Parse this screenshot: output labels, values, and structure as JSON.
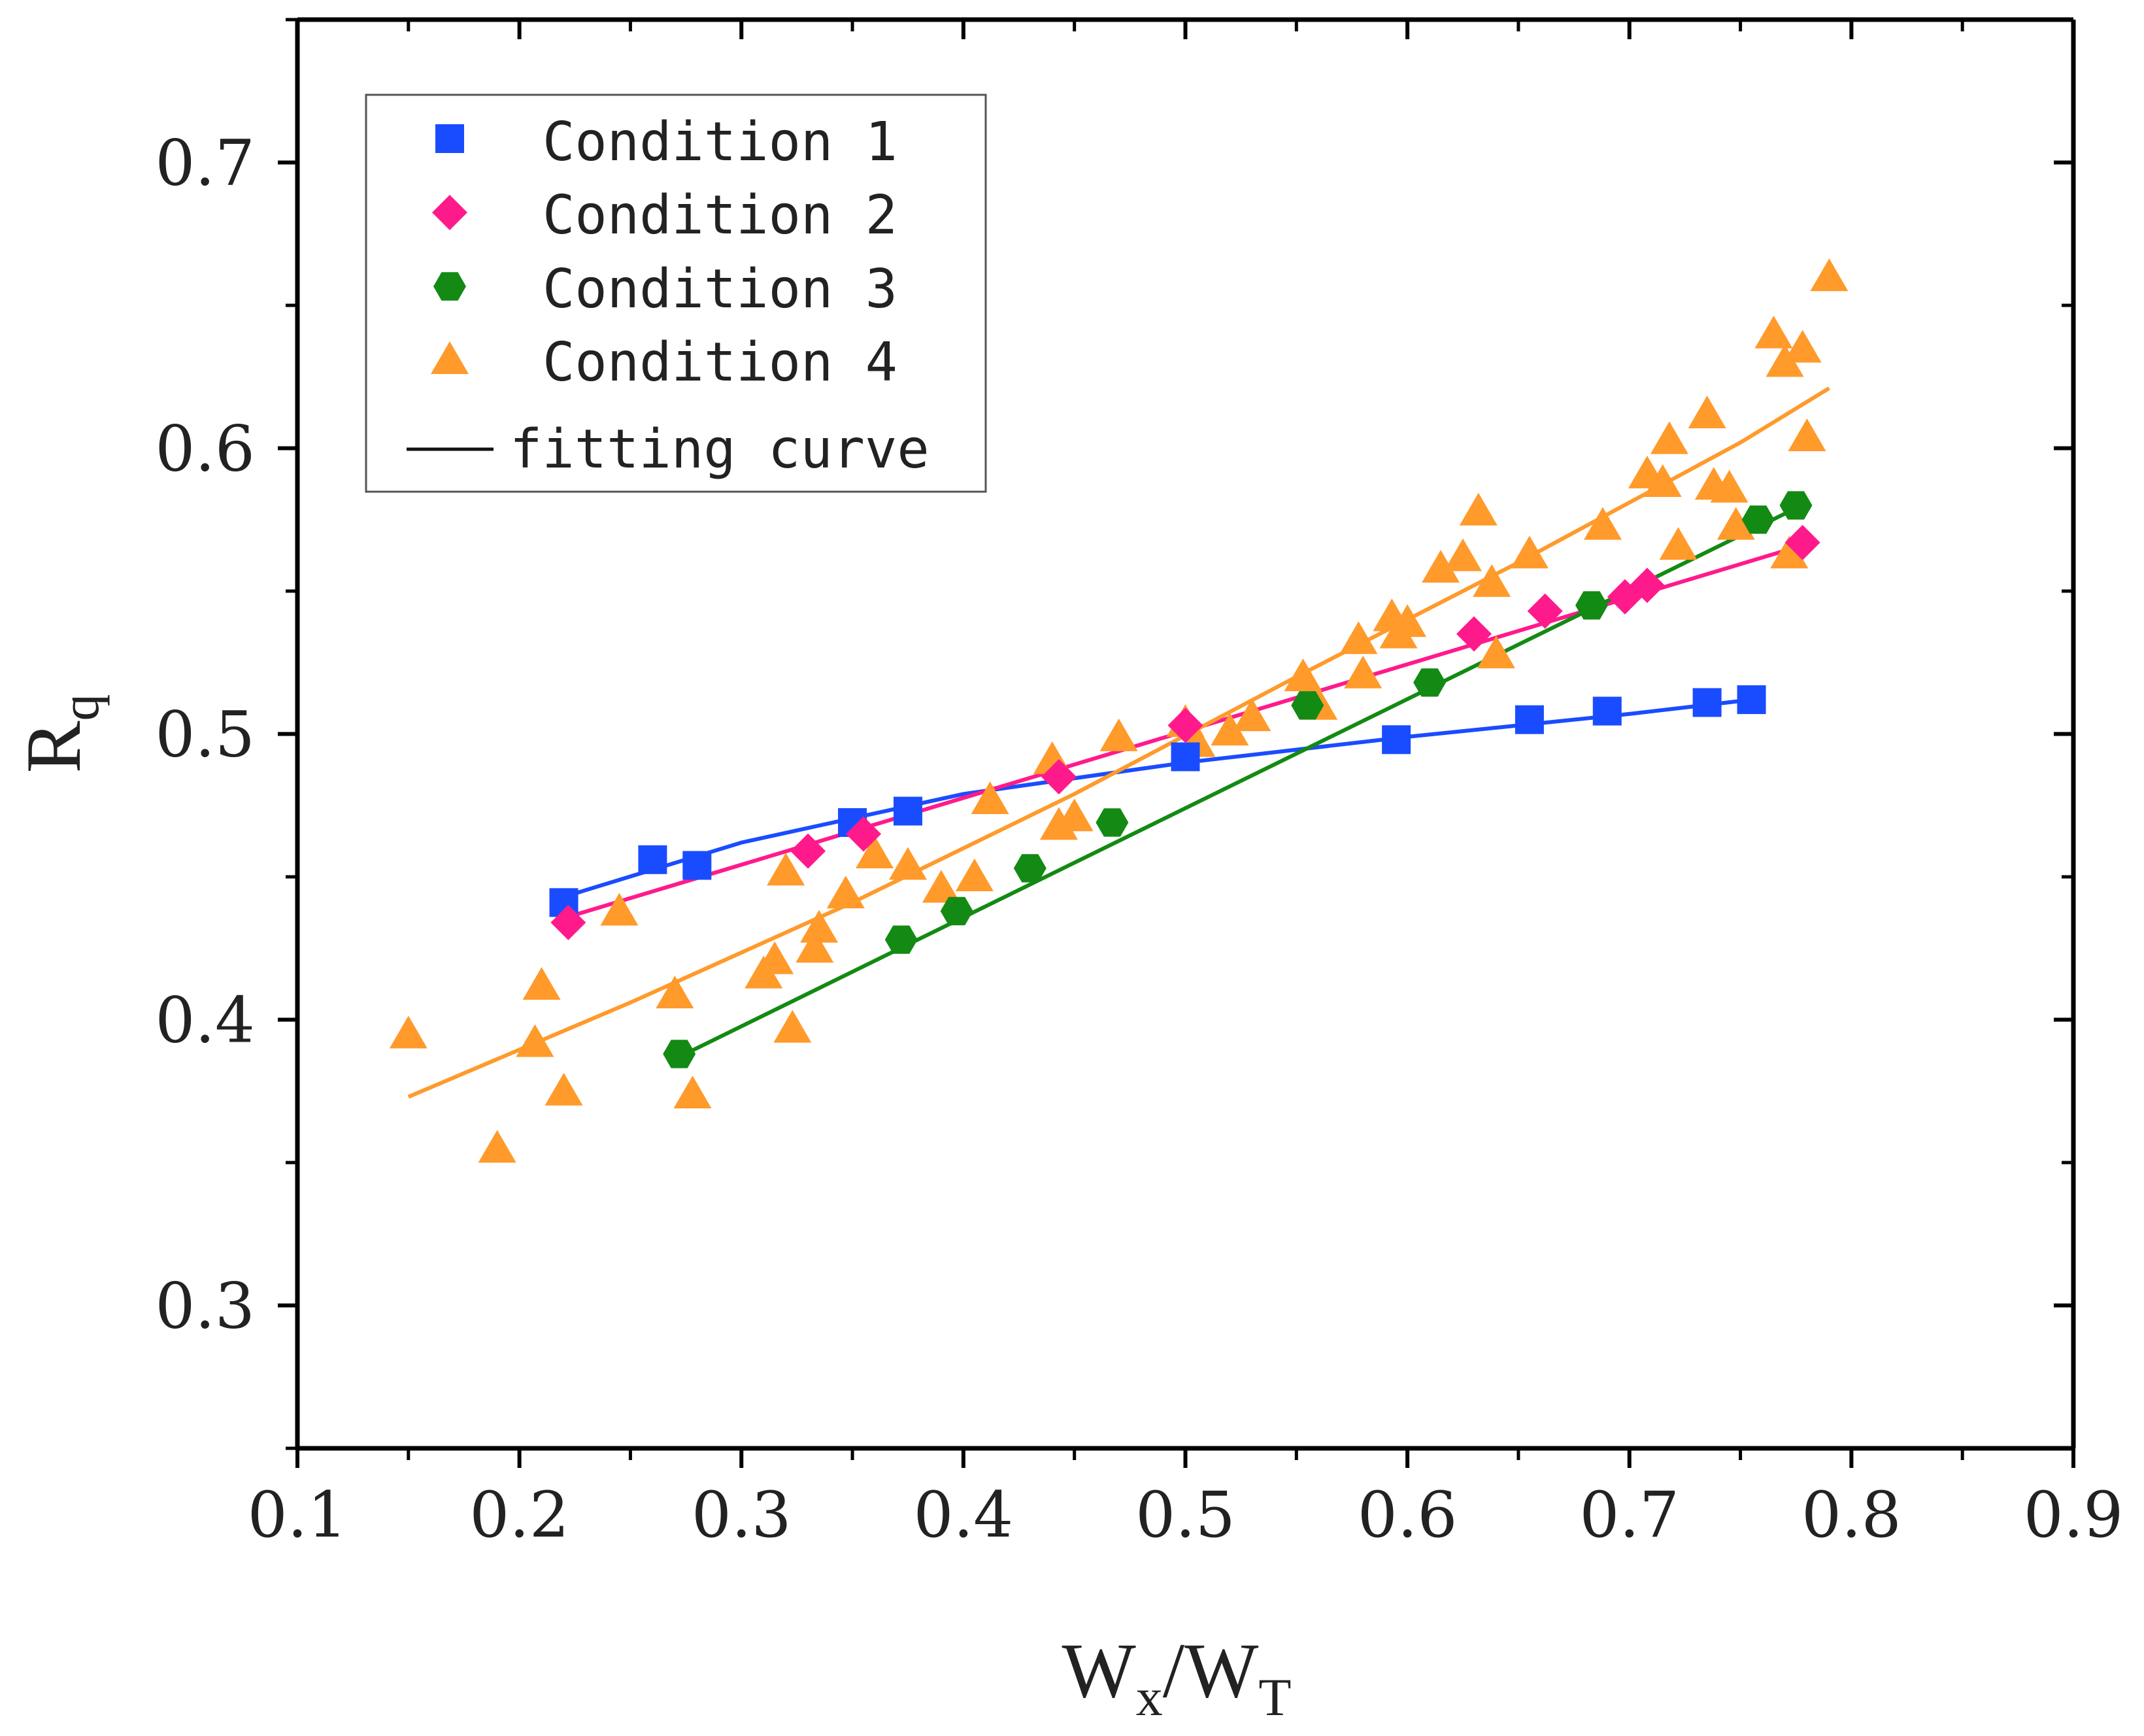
{
  "chart_data": {
    "type": "scatter",
    "title": "",
    "xlabel": {
      "main": "W",
      "sub1": "x",
      "slash": "/W",
      "sub2": "T"
    },
    "ylabel": {
      "main": "R",
      "sub": "q"
    },
    "xlim": [
      0.1,
      0.9
    ],
    "ylim": [
      0.25,
      0.75
    ],
    "xticks": [
      0.1,
      0.2,
      0.3,
      0.4,
      0.5,
      0.6,
      0.7,
      0.8,
      0.9
    ],
    "xtick_labels": [
      "0.1",
      "0.2",
      "0.3",
      "0.4",
      "0.5",
      "0.6",
      "0.7",
      "0.8",
      "0.9"
    ],
    "yticks": [
      0.3,
      0.4,
      0.5,
      0.6,
      0.7
    ],
    "ytick_labels": [
      "0.3",
      "0.4",
      "0.5",
      "0.6",
      "0.7"
    ],
    "grid": false,
    "legend_position": "top-left",
    "fit_label": "fitting curve",
    "series": [
      {
        "name": "Condition 1",
        "marker": "square",
        "color": "#1a4cff",
        "x": [
          0.22,
          0.26,
          0.28,
          0.35,
          0.375,
          0.5,
          0.595,
          0.655,
          0.69,
          0.735,
          0.755
        ],
        "y": [
          0.441,
          0.456,
          0.454,
          0.469,
          0.473,
          0.492,
          0.498,
          0.505,
          0.508,
          0.511,
          0.512
        ],
        "fit": {
          "x": [
            0.22,
            0.3,
            0.4,
            0.5,
            0.6,
            0.7,
            0.755
          ],
          "y": [
            0.443,
            0.462,
            0.479,
            0.49,
            0.499,
            0.507,
            0.512
          ]
        }
      },
      {
        "name": "Condition 2",
        "marker": "diamond",
        "color": "#ff1a8c",
        "x": [
          0.222,
          0.33,
          0.355,
          0.443,
          0.5,
          0.63,
          0.662,
          0.698,
          0.708,
          0.778
        ],
        "y": [
          0.434,
          0.459,
          0.465,
          0.485,
          0.503,
          0.535,
          0.543,
          0.548,
          0.552,
          0.567
        ],
        "fit": {
          "x": [
            0.222,
            0.778
          ],
          "y": [
            0.436,
            0.566
          ]
        }
      },
      {
        "name": "Condition 3",
        "marker": "hexagon",
        "color": "#138a13",
        "x": [
          0.272,
          0.372,
          0.397,
          0.43,
          0.467,
          0.555,
          0.61,
          0.683,
          0.758,
          0.775
        ],
        "y": [
          0.388,
          0.428,
          0.438,
          0.453,
          0.469,
          0.51,
          0.518,
          0.545,
          0.575,
          0.58
        ],
        "fit": {
          "x": [
            0.272,
            0.775
          ],
          "y": [
            0.387,
            0.579
          ]
        }
      },
      {
        "name": "Condition 4",
        "marker": "triangle",
        "color": "#ff9a2b",
        "x": [
          0.15,
          0.19,
          0.207,
          0.21,
          0.22,
          0.245,
          0.27,
          0.278,
          0.31,
          0.315,
          0.32,
          0.323,
          0.333,
          0.335,
          0.347,
          0.36,
          0.375,
          0.39,
          0.405,
          0.412,
          0.44,
          0.443,
          0.45,
          0.47,
          0.5,
          0.505,
          0.52,
          0.53,
          0.553,
          0.56,
          0.578,
          0.58,
          0.593,
          0.596,
          0.6,
          0.615,
          0.625,
          0.632,
          0.638,
          0.64,
          0.655,
          0.688,
          0.708,
          0.715,
          0.718,
          0.722,
          0.735,
          0.738,
          0.745,
          0.748,
          0.765,
          0.77,
          0.772,
          0.778,
          0.78,
          0.79
        ],
        "y": [
          0.395,
          0.355,
          0.392,
          0.412,
          0.375,
          0.438,
          0.409,
          0.374,
          0.416,
          0.421,
          0.452,
          0.397,
          0.425,
          0.432,
          0.444,
          0.458,
          0.454,
          0.446,
          0.45,
          0.477,
          0.491,
          0.468,
          0.471,
          0.499,
          0.504,
          0.497,
          0.501,
          0.506,
          0.52,
          0.51,
          0.533,
          0.521,
          0.541,
          0.535,
          0.539,
          0.558,
          0.562,
          0.578,
          0.553,
          0.528,
          0.563,
          0.573,
          0.591,
          0.588,
          0.603,
          0.566,
          0.612,
          0.587,
          0.586,
          0.573,
          0.64,
          0.63,
          0.563,
          0.635,
          0.604,
          0.66
        ],
        "fit": {
          "x": [
            0.15,
            0.25,
            0.35,
            0.45,
            0.55,
            0.65,
            0.75,
            0.79
          ],
          "y": [
            0.373,
            0.406,
            0.441,
            0.479,
            0.52,
            0.56,
            0.602,
            0.621
          ]
        }
      }
    ]
  }
}
